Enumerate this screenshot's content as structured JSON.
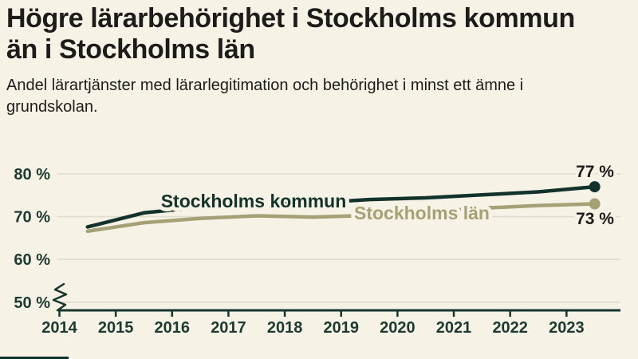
{
  "header": {
    "title_lines": [
      "Högre lärarbehörighet i Stockholms kommun",
      "än i Stockholms län"
    ],
    "subtitle": "Andel lärartjänster med lärarlegitimation och behörighet i minst ett ämne i grundskolan."
  },
  "colors": {
    "background": "#f6f2e5",
    "text": "#1d1c1a",
    "axis": "#16352d",
    "tick_label": "#1d3a32",
    "gridline": "#dedbd0",
    "kommun": "#12332b",
    "lan": "#a6a077"
  },
  "chart_data": {
    "type": "line",
    "title": "Högre lärarbehörighet i Stockholms kommun än i Stockholms län",
    "subtitle": "Andel lärartjänster med lärarlegitimation och behörighet i minst ett ämne i grundskolan.",
    "x": [
      2014.5,
      2015.5,
      2016.5,
      2017.5,
      2018.5,
      2019.5,
      2020.5,
      2021.5,
      2022.5,
      2023.5
    ],
    "x_tick_labels": [
      "2014",
      "2015",
      "2016",
      "2017",
      "2018",
      "2019",
      "2020",
      "2021",
      "2022",
      "2023"
    ],
    "yticks": [
      50,
      60,
      70,
      80
    ],
    "y_tick_labels": [
      "50 %",
      "60 %",
      "70 %",
      "80 %"
    ],
    "ylim": [
      50,
      80
    ],
    "axis_break": true,
    "grid": "horizontal",
    "legend_position": "inline-labels",
    "series": [
      {
        "name": "Stockholms kommun",
        "color": "#12332b",
        "values": [
          67.6,
          70.9,
          72.2,
          72.7,
          73.2,
          74.0,
          74.4,
          75.1,
          75.8,
          77.0
        ],
        "end_label": "77 %"
      },
      {
        "name": "Stockholms län",
        "color": "#a6a077",
        "values": [
          66.6,
          68.6,
          69.6,
          70.2,
          69.9,
          70.3,
          71.1,
          72.0,
          72.6,
          73.0
        ],
        "end_label": "73 %"
      }
    ]
  }
}
